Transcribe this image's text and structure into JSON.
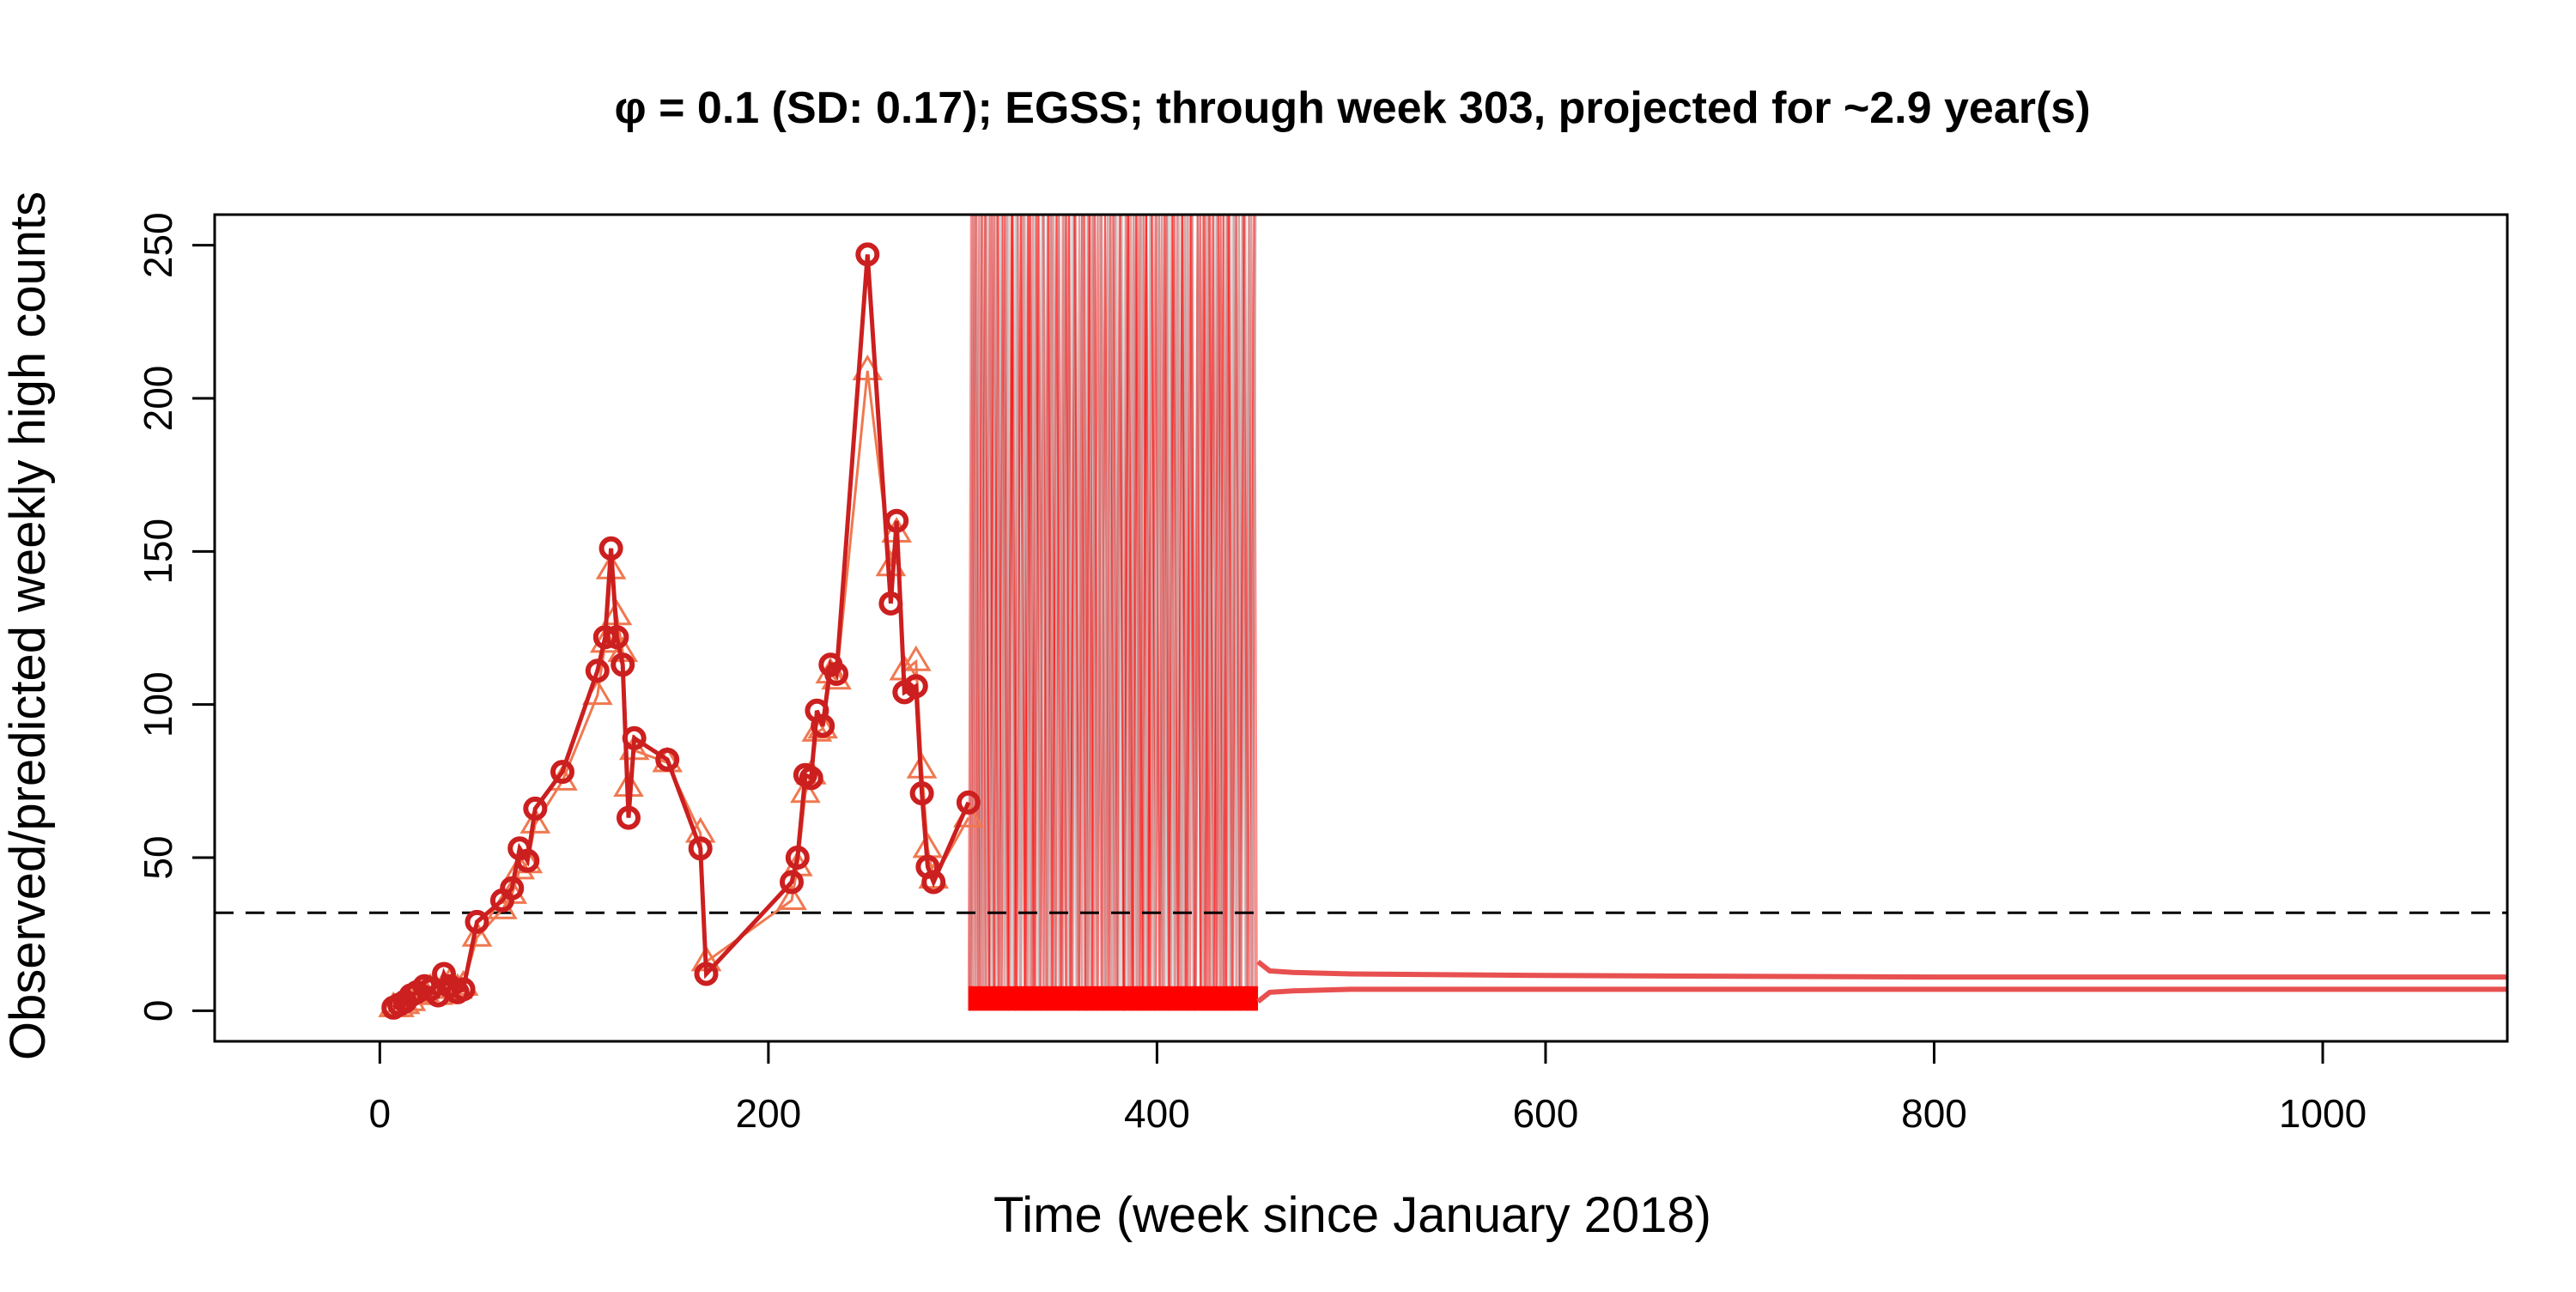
{
  "chart_data": {
    "type": "line",
    "title": "φ = 0.1 (SD: 0.17); EGSS; through week 303, projected for ~2.9 year(s)",
    "xlabel": "Time (week since January 2018)",
    "ylabel": "Observed/predicted weekly high counts",
    "xlim": [
      -85,
      1095
    ],
    "ylim": [
      -10,
      260
    ],
    "x_ticks": [
      0,
      200,
      400,
      600,
      800,
      1000
    ],
    "y_ticks": [
      0,
      50,
      100,
      150,
      200,
      250
    ],
    "grid": false,
    "legend": "none",
    "threshold": {
      "y": 32,
      "style": "dashed",
      "color": "#000000"
    },
    "observed": {
      "marker": "circle",
      "color": "#cc1f1f",
      "x": [
        7,
        10,
        13,
        16,
        19,
        23,
        26,
        30,
        33,
        36,
        40,
        43,
        50,
        63,
        68,
        72,
        76,
        80,
        94,
        112,
        116,
        119,
        122,
        125,
        128,
        131,
        148,
        165,
        168,
        212,
        215,
        219,
        222,
        225,
        228,
        232,
        235,
        251,
        263,
        266,
        270,
        276,
        279,
        282,
        285,
        303
      ],
      "y": [
        1,
        2,
        3,
        5,
        6,
        8,
        7,
        5,
        12,
        8,
        6,
        7,
        29,
        36,
        40,
        53,
        49,
        66,
        78,
        111,
        122,
        151,
        122,
        113,
        63,
        89,
        82,
        53,
        12,
        42,
        50,
        77,
        76,
        98,
        93,
        113,
        110,
        247,
        133,
        160,
        104,
        106,
        71,
        47,
        42,
        68
      ]
    },
    "predicted": {
      "marker": "triangle",
      "color": "#f07850",
      "x": [
        7,
        10,
        13,
        16,
        19,
        23,
        26,
        30,
        33,
        36,
        40,
        43,
        50,
        63,
        68,
        72,
        76,
        80,
        94,
        112,
        116,
        119,
        122,
        125,
        128,
        131,
        148,
        165,
        168,
        212,
        215,
        219,
        222,
        225,
        228,
        232,
        235,
        251,
        263,
        266,
        270,
        276,
        279,
        282,
        285,
        303
      ],
      "y": [
        1,
        1,
        2,
        3,
        5,
        6,
        7,
        5,
        8,
        9,
        7,
        8,
        24,
        33,
        38,
        46,
        48,
        61,
        75,
        103,
        120,
        144,
        129,
        117,
        73,
        85,
        81,
        58,
        16,
        36,
        47,
        71,
        77,
        91,
        92,
        110,
        108,
        209,
        145,
        156,
        111,
        114,
        79,
        53,
        43,
        63
      ]
    },
    "projection": {
      "oscillation_range": [
        303,
        452
      ],
      "oscillation_y_range": [
        0,
        260
      ],
      "colors": [
        "#ff0000",
        "#bfbfbf"
      ],
      "upper_tail": {
        "x": [
          452,
          458,
          470,
          500,
          600,
          800,
          1100
        ],
        "y": [
          16,
          13,
          12.5,
          12,
          11.5,
          11,
          11
        ]
      },
      "lower_tail": {
        "x": [
          452,
          458,
          470,
          500,
          600,
          800,
          1100
        ],
        "y": [
          3,
          6,
          6.5,
          7,
          7,
          7,
          7
        ]
      },
      "tail_color": "#e85050"
    }
  }
}
